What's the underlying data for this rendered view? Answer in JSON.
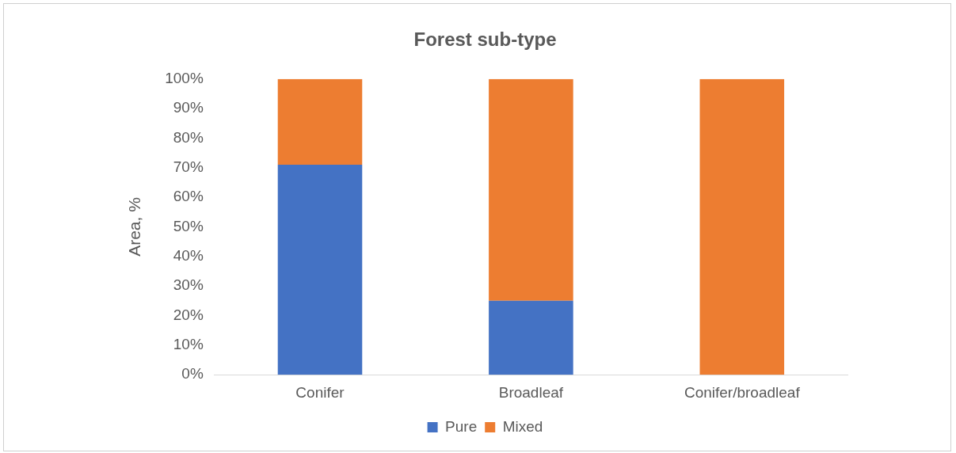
{
  "chart_data": {
    "type": "bar",
    "title": "Forest sub-type",
    "ylabel": "Area, %",
    "categories": [
      "Conifer",
      "Broadleaf",
      "Conifer/broadleaf"
    ],
    "stacked": true,
    "grid": false,
    "legend": "bottom",
    "ylim": [
      0,
      100
    ],
    "yticks": [
      {
        "value": 0,
        "label": "0%"
      },
      {
        "value": 10,
        "label": "10%"
      },
      {
        "value": 20,
        "label": "20%"
      },
      {
        "value": 30,
        "label": "30%"
      },
      {
        "value": 40,
        "label": "40%"
      },
      {
        "value": 50,
        "label": "50%"
      },
      {
        "value": 60,
        "label": "60%"
      },
      {
        "value": 70,
        "label": "70%"
      },
      {
        "value": 80,
        "label": "80%"
      },
      {
        "value": 90,
        "label": "90%"
      },
      {
        "value": 100,
        "label": "100%"
      }
    ],
    "series": [
      {
        "name": "Pure",
        "color": "#4472c4",
        "values": [
          71,
          25,
          0
        ]
      },
      {
        "name": "Mixed",
        "color": "#ed7d31",
        "values": [
          29,
          75,
          100
        ]
      }
    ]
  }
}
